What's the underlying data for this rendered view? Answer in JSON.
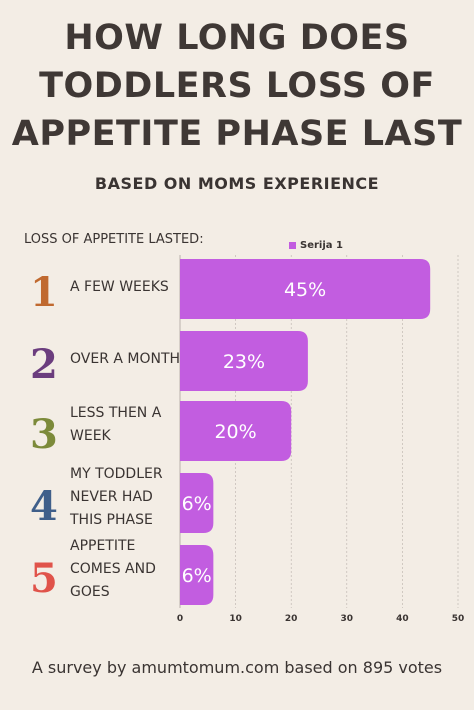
{
  "title_lines": [
    "HOW LONG DOES",
    "TODDLERS LOSS OF",
    "APPETITE PHASE LAST"
  ],
  "subtitle": "BASED ON MOMS EXPERIENCE",
  "section_label": "LOSS OF APPETITE LASTED:",
  "footer": "A survey by amumtomum.com based on 895 votes",
  "colors": {
    "bar": "#c25de0",
    "grid": "#b8b1aa",
    "background": "#f3ede5"
  },
  "chart_data": {
    "type": "bar",
    "orientation": "horizontal",
    "categories": [
      {
        "rank": "1",
        "lines": [
          "A FEW WEEKS"
        ],
        "color": "#c0692f"
      },
      {
        "rank": "2",
        "lines": [
          "OVER A MONTH"
        ],
        "color": "#6b3d7e"
      },
      {
        "rank": "3",
        "lines": [
          "LESS THEN A",
          "WEEK"
        ],
        "color": "#7c8a3a"
      },
      {
        "rank": "4",
        "lines": [
          "MY TODDLER",
          "NEVER HAD",
          "THIS PHASE"
        ],
        "color": "#3f5f8a"
      },
      {
        "rank": "5",
        "lines": [
          "APPETITE",
          "COMES AND",
          "GOES"
        ],
        "color": "#e0534a"
      }
    ],
    "series": [
      {
        "name": "Serija 1",
        "values": [
          45,
          23,
          20,
          6,
          6
        ],
        "labels": [
          "45%",
          "23%",
          "20%",
          "6%",
          "6%"
        ]
      }
    ],
    "xlim": [
      0,
      50
    ],
    "xticks": [
      "0",
      "10",
      "20",
      "30",
      "40",
      "50"
    ],
    "grid": true,
    "legend": "top-center"
  }
}
